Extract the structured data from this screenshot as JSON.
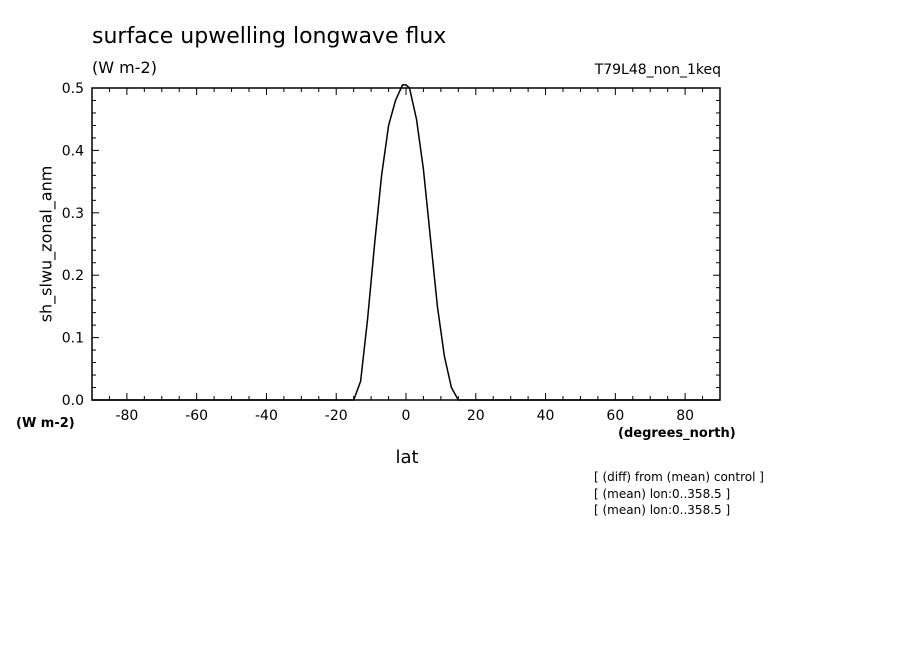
{
  "header": {
    "title": "surface upwelling longwave flux",
    "units": "(W m-2)",
    "run_id": "T79L48_non_1keq"
  },
  "axes": {
    "ylabel": "sh_slwu_zonal_anm",
    "yunits": "(W m-2)",
    "xlabel": "lat",
    "xunits": "(degrees_north)"
  },
  "notes": [
    "[ (diff) from (mean) control ]",
    "[ (mean) lon:0..358.5 ]",
    "[ (mean) lon:0..358.5 ]"
  ],
  "chart_data": {
    "type": "line",
    "title": "surface upwelling longwave flux",
    "xlabel": "lat",
    "ylabel": "sh_slwu_zonal_anm",
    "xlim": [
      -90,
      90
    ],
    "ylim": [
      0,
      0.5
    ],
    "xticks": [
      -80,
      -60,
      -40,
      -20,
      0,
      20,
      40,
      60,
      80
    ],
    "yticks": [
      0.0,
      0.1,
      0.2,
      0.3,
      0.4,
      0.5
    ],
    "xtick_labels": [
      "-80",
      "-60",
      "-40",
      "-20",
      "0",
      "20",
      "40",
      "60",
      "80"
    ],
    "ytick_labels": [
      "0.0",
      "0.1",
      "0.2",
      "0.3",
      "0.4",
      "0.5"
    ],
    "grid": false,
    "series": [
      {
        "x": [
          -90,
          -15,
          -13,
          -11,
          -9,
          -7,
          -5,
          -3,
          -1,
          0,
          1,
          3,
          5,
          7,
          9,
          11,
          13,
          15,
          90
        ],
        "y": [
          0,
          0,
          0.03,
          0.13,
          0.25,
          0.36,
          0.44,
          0.48,
          0.505,
          0.505,
          0.5,
          0.45,
          0.37,
          0.26,
          0.15,
          0.07,
          0.02,
          0,
          0
        ]
      }
    ]
  }
}
